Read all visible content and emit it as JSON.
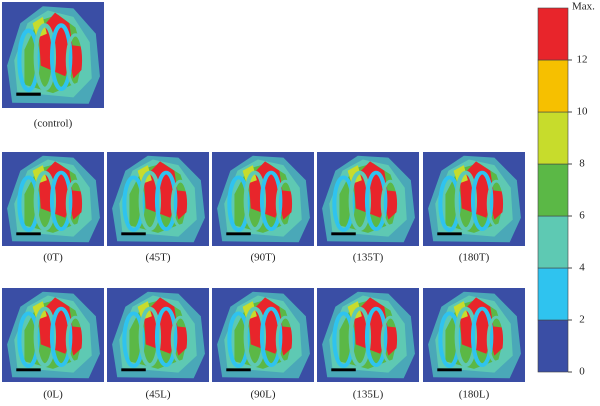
{
  "panels": [
    {
      "label": "(control)"
    },
    {
      "label": "(0T)"
    },
    {
      "label": "(45T)"
    },
    {
      "label": "(90T)"
    },
    {
      "label": "(135T)"
    },
    {
      "label": "(180T)"
    },
    {
      "label": "(0L)"
    },
    {
      "label": "(45L)"
    },
    {
      "label": "(90L)"
    },
    {
      "label": "(135L)"
    },
    {
      "label": "(180L)"
    }
  ],
  "colorbar": {
    "max_label": "Max.",
    "ticks": [
      12,
      10,
      8,
      6,
      4,
      2,
      0
    ],
    "bands": [
      "#3a4ea5",
      "#2fc3ef",
      "#5ec9b3",
      "#5bb846",
      "#c7dc2c",
      "#f6c000",
      "#e8252b"
    ]
  }
}
